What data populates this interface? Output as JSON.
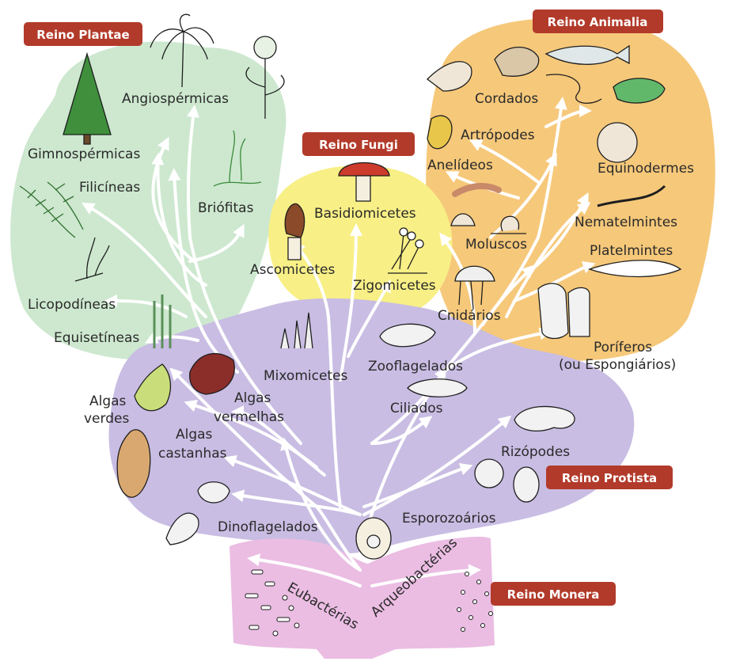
{
  "colors": {
    "plantae_bg": "#cde8cf",
    "fungi_bg": "#f8ef86",
    "animalia_bg": "#f6c87a",
    "protista_bg": "#c9bde3",
    "monera_bg": "#ebbde3",
    "badge_bg": "#b23a2a",
    "branch": "#ffffff"
  },
  "kingdoms": {
    "plantae": "Reino Plantae",
    "fungi": "Reino Fungi",
    "animalia": "Reino Animalia",
    "protista": "Reino Protista",
    "monera": "Reino Monera"
  },
  "plantae": {
    "angiospermicas": "Angiospérmicas",
    "gimnospermicas": "Gimnospérmicas",
    "filicineas": "Filicíneas",
    "briofitas": "Briófitas",
    "licopodineas": "Licopodíneas",
    "equisetineas": "Equisetíneas"
  },
  "fungi": {
    "basidiomicetes": "Basidiomicetes",
    "ascomicetes": "Ascomicetes",
    "zigomicetes": "Zigomicetes"
  },
  "animalia": {
    "cordados": "Cordados",
    "artropodes": "Artrópodes",
    "anelideos": "Anelídeos",
    "equinodermes": "Equinodermes",
    "nematelmintes": "Nematelmintes",
    "moluscos": "Moluscos",
    "platelmintes": "Platelmintes",
    "cnidarios": "Cnidários",
    "poriferos_1": "Poríferos",
    "poriferos_2": "(ou Espongiários)"
  },
  "protista": {
    "mixomicetes": "Mixomicetes",
    "zooflagelados": "Zooflagelados",
    "algas_verdes_1": "Algas",
    "algas_verdes_2": "verdes",
    "algas_vermelhas_1": "Algas",
    "algas_vermelhas_2": "vermelhas",
    "algas_castanhas_1": "Algas",
    "algas_castanhas_2": "castanhas",
    "ciliados": "Ciliados",
    "rizopodes": "Rizópodes",
    "dinoflagelados": "Dinoflagelados",
    "esporozoarios": "Esporozoários"
  },
  "monera": {
    "eubacterias": "Eubactérias",
    "arqueobacterias": "Arqueobactérias"
  }
}
